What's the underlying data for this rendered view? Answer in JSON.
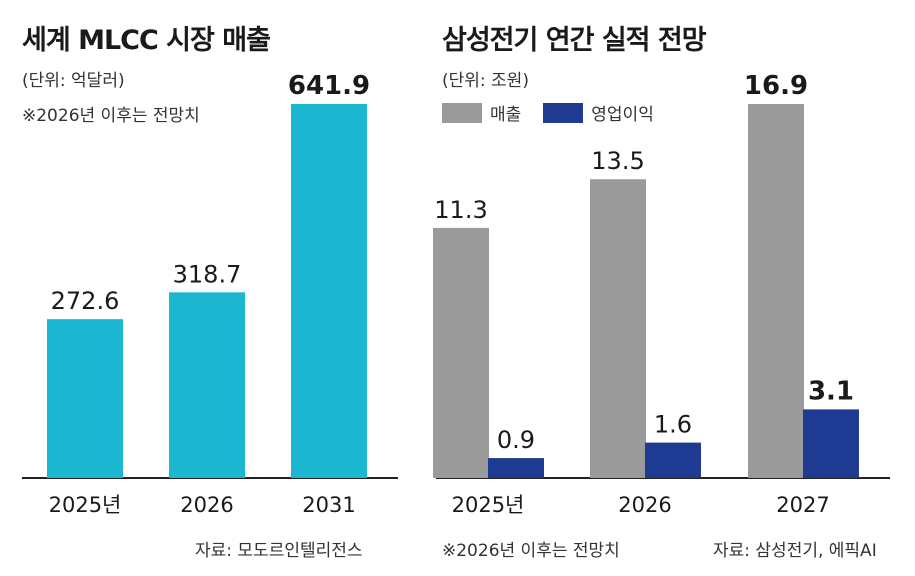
{
  "colors": {
    "market_bar": "#1bb7d1",
    "sales_bar": "#9a9a9a",
    "op_profit_bar": "#1f3a93",
    "axis": "#222222"
  },
  "left": {
    "title": "세계 MLCC 시장 매출",
    "unit": "(단위: 억달러)",
    "note": "※2026년 이후는 전망치",
    "source": "자료: 모도르인텔리전스"
  },
  "right": {
    "title": "삼성전기 연간 실적 전망",
    "unit": "(단위: 조원)",
    "legend": [
      "매출",
      "영업이익"
    ],
    "note": "※2026년 이후는 전망치",
    "source": "자료: 삼성전기, 에픽AI"
  },
  "chart_data": [
    {
      "type": "bar",
      "title": "세계 MLCC 시장 매출",
      "unit": "억달러",
      "categories": [
        "2025년",
        "2026",
        "2031"
      ],
      "series": [
        {
          "values": [
            272.6,
            318.7,
            641.9
          ],
          "labels": [
            "272.6",
            "318.7",
            "641.9"
          ]
        }
      ],
      "highlight_last_label_bold": true,
      "ylim": [
        0,
        680
      ],
      "grid": false
    },
    {
      "type": "bar",
      "title": "삼성전기 연간 실적 전망",
      "unit": "조원",
      "categories": [
        "2025년",
        "2026",
        "2027"
      ],
      "series": [
        {
          "name": "매출",
          "values": [
            11.3,
            13.5,
            16.9
          ],
          "labels": [
            "11.3",
            "13.5",
            "16.9"
          ]
        },
        {
          "name": "영업이익",
          "values": [
            0.9,
            1.6,
            3.1
          ],
          "labels": [
            "0.9",
            "1.6",
            "3.1"
          ]
        }
      ],
      "highlight_last_label_bold": true,
      "ylim": [
        0,
        18
      ],
      "grid": false,
      "legend": "top-left"
    }
  ]
}
